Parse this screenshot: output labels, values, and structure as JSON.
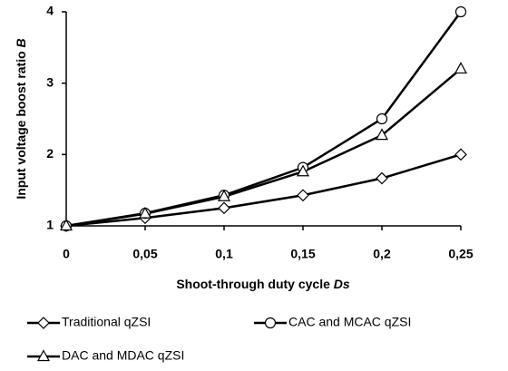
{
  "chart_data": {
    "type": "line",
    "y_label": "Input voltage boost ratio",
    "y_symbol": "B",
    "x_label": "Shoot-through duty cycle",
    "x_symbol": "Ds",
    "x": [
      0,
      0.05,
      0.1,
      0.15,
      0.2,
      0.25
    ],
    "series": [
      {
        "name": "Traditional qZSI",
        "color": "#000000",
        "marker": "diamond",
        "values": [
          1,
          1.111,
          1.25,
          1.429,
          1.667,
          2
        ]
      },
      {
        "name": "CAC and MCAC qZSI",
        "color": "#000000",
        "marker": "circle",
        "values": [
          1,
          1.176,
          1.429,
          1.818,
          2.5,
          4
        ]
      },
      {
        "name": "DAC and MDAC qZSI",
        "color": "#000000",
        "marker": "triangle",
        "values": [
          1,
          1.17,
          1.41,
          1.76,
          2.27,
          3.2
        ]
      }
    ],
    "xlim": [
      0,
      0.25
    ],
    "xticks": [
      0,
      {
        "value": 0.05,
        "label": "0,05"
      },
      {
        "value": 0.1,
        "label": "0,1"
      },
      {
        "value": 0.15,
        "label": "0,15"
      },
      {
        "value": 0.2,
        "label": "0,2"
      },
      {
        "value": 0.25,
        "label": "0,25"
      }
    ],
    "ylim": [
      1,
      4
    ],
    "yticks": [
      1,
      2,
      3,
      4
    ],
    "grid": false
  }
}
